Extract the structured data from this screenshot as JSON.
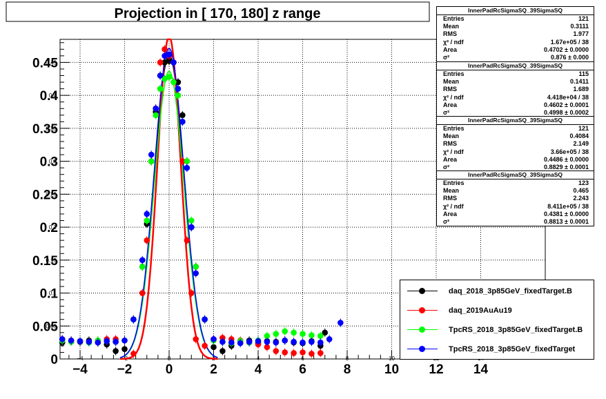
{
  "chart_data": {
    "type": "scatter",
    "title": "Projection in [ 170, 180] z range",
    "xlim": [
      -4.9,
      16.9
    ],
    "ylim": [
      0,
      0.485
    ],
    "x_ticks_major": [
      "−4",
      "−2",
      "0",
      "2",
      "4",
      "6",
      "8",
      "10",
      "12",
      "14"
    ],
    "x_tick_values": [
      -4,
      -2,
      0,
      2,
      4,
      6,
      8,
      10,
      12,
      14
    ],
    "x_ticks_inner": [
      "−4",
      "−2",
      "0",
      "2",
      "4",
      "6",
      "8",
      "10",
      "12",
      "14"
    ],
    "y_ticks_major": [
      "0",
      "0.05",
      "0.1",
      "0.15",
      "0.2",
      "0.25",
      "0.3",
      "0.35",
      "0.4",
      "0.45"
    ],
    "y_tick_values": [
      0,
      0.05,
      0.1,
      0.15,
      0.2,
      0.25,
      0.3,
      0.35,
      0.4,
      0.45
    ],
    "y_ticks_inner": [
      "0.05",
      "0.1",
      "0.15",
      "0.2",
      "0.25",
      "0.3",
      "0.35",
      "0.4",
      "0.45"
    ],
    "grid": true,
    "legend_position": "bottom-right",
    "series": [
      {
        "name": "daq_2018_3p85GeV_fixedTarget.B",
        "color": "#000000",
        "sigma": 0.876,
        "area": 0.4702,
        "baseline": 0.025,
        "x": [
          -4.8,
          -4.4,
          -4.0,
          -3.6,
          -3.2,
          -2.8,
          -2.4,
          -2.0,
          -1.6,
          -1.2,
          -1.0,
          -0.8,
          -0.6,
          -0.4,
          -0.2,
          0.0,
          0.2,
          0.4,
          0.6,
          0.8,
          1.0,
          1.2,
          1.6,
          2.0,
          2.4,
          2.8,
          3.2,
          3.6,
          4.0,
          4.4,
          4.8,
          5.2,
          5.6,
          6.0,
          6.4,
          6.8,
          7.0
        ],
        "y": [
          0.025,
          0.027,
          0.026,
          0.028,
          0.025,
          0.022,
          0.012,
          0.015,
          0.06,
          0.14,
          0.205,
          0.3,
          0.375,
          0.43,
          0.45,
          0.452,
          0.45,
          0.42,
          0.37,
          0.3,
          0.2,
          0.14,
          0.06,
          0.018,
          0.012,
          0.02,
          0.026,
          0.028,
          0.024,
          0.027,
          0.026,
          0.028,
          0.025,
          0.024,
          0.027,
          0.02,
          0.04
        ]
      },
      {
        "name": "daq_2019AuAu19",
        "color": "#ff0000",
        "sigma": 0.4998,
        "area": 0.4602,
        "baseline": 0.03,
        "x": [
          -4.8,
          -4.4,
          -4.0,
          -3.6,
          -3.2,
          -2.8,
          -2.4,
          -2.0,
          -1.6,
          -1.2,
          -1.0,
          -0.8,
          -0.6,
          -0.4,
          -0.2,
          0.0,
          0.2,
          0.4,
          0.6,
          0.8,
          1.0,
          1.2,
          1.6,
          2.0,
          2.4,
          2.8,
          3.2,
          3.6,
          4.0,
          4.4,
          4.8,
          5.2,
          5.6,
          6.0,
          6.4,
          6.8
        ],
        "y": [
          0.03,
          0.028,
          0.027,
          0.026,
          0.028,
          0.03,
          0.03,
          0.028,
          0.008,
          0.1,
          0.18,
          0.3,
          0.38,
          0.45,
          0.47,
          0.46,
          0.45,
          0.4,
          0.3,
          0.18,
          0.1,
          0.03,
          0.02,
          0.03,
          0.032,
          0.03,
          0.028,
          0.025,
          0.022,
          0.018,
          0.012,
          0.01,
          0.009,
          0.01,
          0.008,
          0.009
        ]
      },
      {
        "name": "TpcRS_2018_3p85GeV_fixedTarget.B",
        "color": "#00ff00",
        "sigma": 0.8829,
        "area": 0.4486,
        "baseline": 0.025,
        "x": [
          -4.8,
          -4.4,
          -4.0,
          -3.6,
          -3.2,
          -2.8,
          -2.4,
          -2.0,
          -1.6,
          -1.2,
          -1.0,
          -0.8,
          -0.6,
          -0.4,
          -0.2,
          0.0,
          0.2,
          0.4,
          0.6,
          0.8,
          1.0,
          1.2,
          1.6,
          2.0,
          2.4,
          2.8,
          3.2,
          3.6,
          4.0,
          4.4,
          4.8,
          5.2,
          5.6,
          6.0,
          6.4,
          6.8
        ],
        "y": [
          0.028,
          0.026,
          0.027,
          0.025,
          0.028,
          0.027,
          0.026,
          0.028,
          0.06,
          0.14,
          0.21,
          0.3,
          0.37,
          0.41,
          0.425,
          0.428,
          0.42,
          0.4,
          0.36,
          0.3,
          0.21,
          0.14,
          0.06,
          0.028,
          0.026,
          0.024,
          0.027,
          0.025,
          0.028,
          0.035,
          0.038,
          0.042,
          0.04,
          0.038,
          0.036,
          0.035
        ]
      },
      {
        "name": "TpcRS_2018_3p85GeV_fixedTarget",
        "color": "#0000ff",
        "sigma": 0.8813,
        "area": 0.4381,
        "baseline": 0.025,
        "x": [
          -4.8,
          -4.4,
          -4.0,
          -3.6,
          -3.2,
          -2.8,
          -2.4,
          -2.0,
          -1.6,
          -1.2,
          -1.0,
          -0.8,
          -0.6,
          -0.4,
          -0.2,
          0.0,
          0.2,
          0.4,
          0.6,
          0.8,
          1.0,
          1.2,
          1.6,
          2.0,
          2.4,
          2.8,
          3.2,
          3.6,
          4.0,
          4.4,
          4.8,
          5.2,
          5.6,
          6.0,
          6.4,
          6.8,
          7.2,
          7.7
        ],
        "y": [
          0.03,
          0.028,
          0.027,
          0.026,
          0.025,
          0.027,
          0.026,
          0.028,
          0.06,
          0.15,
          0.22,
          0.31,
          0.38,
          0.43,
          0.46,
          0.462,
          0.45,
          0.41,
          0.36,
          0.29,
          0.2,
          0.13,
          0.06,
          0.03,
          0.026,
          0.025,
          0.024,
          0.026,
          0.027,
          0.026,
          0.025,
          0.028,
          0.026,
          0.025,
          0.026,
          0.025,
          0.03,
          0.055
        ]
      }
    ]
  },
  "stats_boxes": [
    {
      "title": "InnerPadRcSigmaSQ_39SigmaSQ",
      "rows": [
        {
          "label": "Entries",
          "value": "121"
        },
        {
          "label": "Mean",
          "value": "0.3111"
        },
        {
          "label": "RMS",
          "value": "1.977"
        },
        {
          "label": "χ² / ndf",
          "value": "1.67e+05 / 38"
        },
        {
          "label": "Area",
          "value": "0.4702 ± 0.0000"
        },
        {
          "label": "σ²",
          "value": "0.876 ± 0.000"
        }
      ]
    },
    {
      "title": "InnerPadRcSigmaSQ_39SigmaSQ",
      "rows": [
        {
          "label": "Entries",
          "value": "115"
        },
        {
          "label": "Mean",
          "value": "0.1411"
        },
        {
          "label": "RMS",
          "value": "1.689"
        },
        {
          "label": "χ² / ndf",
          "value": "4.418e+04 / 38"
        },
        {
          "label": "Area",
          "value": "0.4602 ± 0.0001"
        },
        {
          "label": "σ²",
          "value": "0.4998 ± 0.0002"
        }
      ]
    },
    {
      "title": "InnerPadRcSigmaSQ_39SigmaSQ",
      "rows": [
        {
          "label": "Entries",
          "value": "121"
        },
        {
          "label": "Mean",
          "value": "0.4084"
        },
        {
          "label": "RMS",
          "value": "2.149"
        },
        {
          "label": "χ² / ndf",
          "value": "3.66e+05 / 38"
        },
        {
          "label": "Area",
          "value": "0.4486 ± 0.0000"
        },
        {
          "label": "σ²",
          "value": "0.8829 ± 0.0001"
        }
      ]
    },
    {
      "title": "InnerPadRcSigmaSQ_39SigmaSQ",
      "rows": [
        {
          "label": "Entries",
          "value": "123"
        },
        {
          "label": "Mean",
          "value": "0.465"
        },
        {
          "label": "RMS",
          "value": "2.243"
        },
        {
          "label": "χ² / ndf",
          "value": "8.411e+05 / 38"
        },
        {
          "label": "Area",
          "value": "0.4381 ± 0.0000"
        },
        {
          "label": "σ²",
          "value": "0.8813 ± 0.0001"
        }
      ]
    }
  ]
}
